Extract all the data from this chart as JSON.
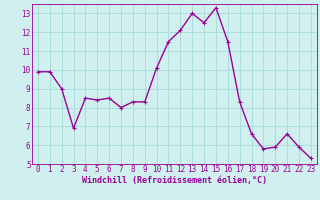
{
  "x": [
    0,
    1,
    2,
    3,
    4,
    5,
    6,
    7,
    8,
    9,
    10,
    11,
    12,
    13,
    14,
    15,
    16,
    17,
    18,
    19,
    20,
    21,
    22,
    23
  ],
  "y": [
    9.9,
    9.9,
    9.0,
    6.9,
    8.5,
    8.4,
    8.5,
    8.0,
    8.3,
    8.3,
    10.1,
    11.5,
    12.1,
    13.0,
    12.5,
    13.3,
    11.5,
    8.3,
    6.6,
    5.8,
    5.9,
    6.6,
    5.9,
    5.3
  ],
  "line_color": "#990099",
  "marker": "+",
  "marker_size": 3,
  "linewidth": 1.0,
  "background_color": "#d0f0f0",
  "grid_color": "#aadddd",
  "xlabel": "Windchill (Refroidissement éolien,°C)",
  "xlabel_color": "#990099",
  "tick_color": "#990099",
  "ylim": [
    5,
    13.5
  ],
  "yticks": [
    5,
    6,
    7,
    8,
    9,
    10,
    11,
    12,
    13
  ],
  "xlim": [
    -0.5,
    23.5
  ],
  "xticks": [
    0,
    1,
    2,
    3,
    4,
    5,
    6,
    7,
    8,
    9,
    10,
    11,
    12,
    13,
    14,
    15,
    16,
    17,
    18,
    19,
    20,
    21,
    22,
    23
  ],
  "axis_fontsize": 5.5,
  "xlabel_fontsize": 6.0
}
